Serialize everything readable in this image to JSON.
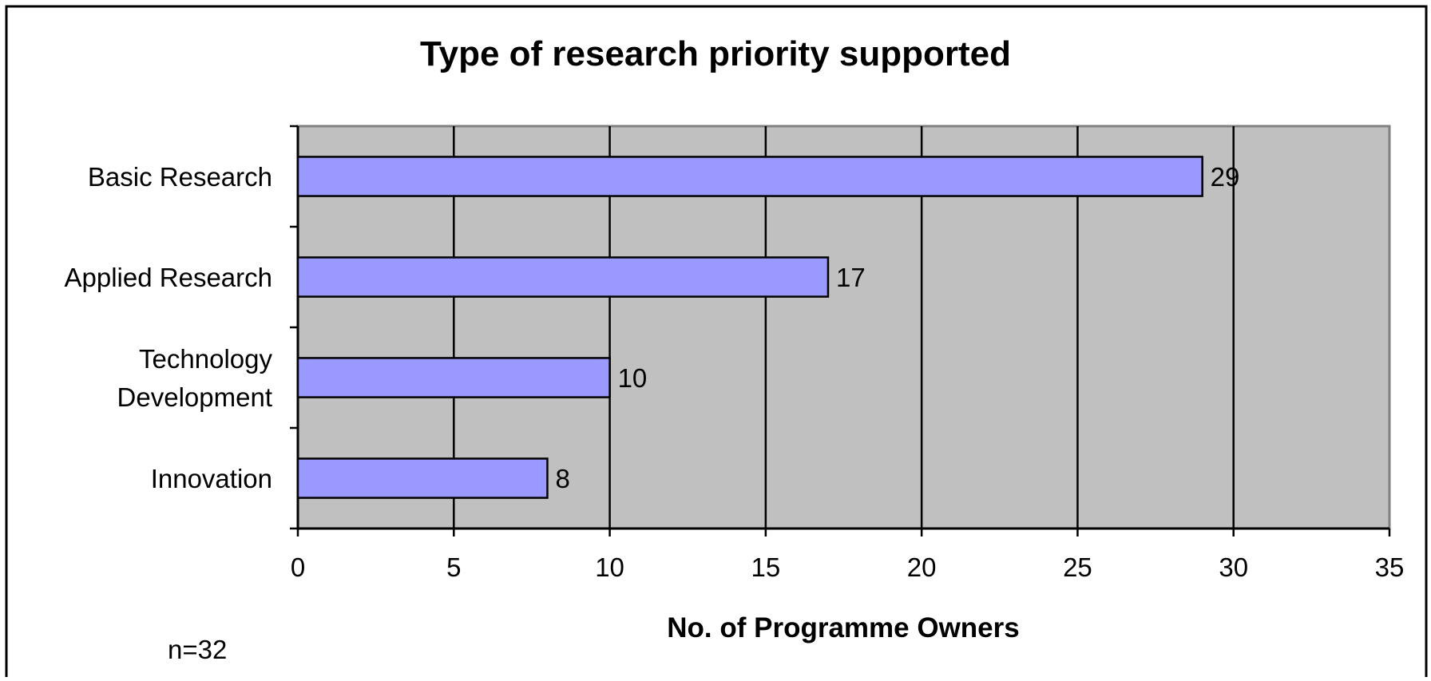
{
  "chart_data": {
    "type": "bar",
    "orientation": "horizontal",
    "title": "Type of research priority supported",
    "xlabel": "No. of Programme Owners",
    "ylabel": "",
    "xlim": [
      0,
      35
    ],
    "x_ticks": [
      0,
      5,
      10,
      15,
      20,
      25,
      30,
      35
    ],
    "categories": [
      [
        "Basic Research"
      ],
      [
        "Applied Research"
      ],
      [
        "Technology",
        "Development"
      ],
      [
        "Innovation"
      ]
    ],
    "values": [
      29,
      17,
      10,
      8
    ],
    "data_labels": [
      "29",
      "17",
      "10",
      "8"
    ],
    "grid": "vertical",
    "legend": "none",
    "annotation": "n=32",
    "colors": {
      "bar_fill": "#9999ff",
      "bar_stroke": "#000000",
      "plot_background": "#c0c0c0",
      "gridline": "#000000",
      "frame": "#000000"
    }
  }
}
